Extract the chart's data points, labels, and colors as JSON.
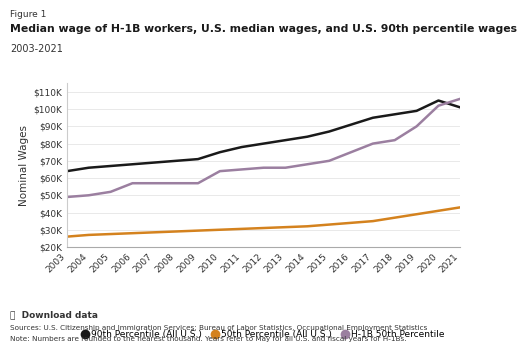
{
  "figure_label": "Figure 1",
  "title": "Median wage of H-1B workers, U.S. median wages, and U.S. 90th percentile wages",
  "subtitle": "2003-2021",
  "ylabel": "Nominal Wages",
  "years": [
    2003,
    2004,
    2005,
    2006,
    2007,
    2008,
    2009,
    2010,
    2011,
    2012,
    2013,
    2014,
    2015,
    2016,
    2017,
    2018,
    2019,
    2020,
    2021
  ],
  "series": [
    {
      "label": "90th Percentile (All U.S.)",
      "values": [
        64000,
        66000,
        67000,
        68000,
        69000,
        70000,
        71000,
        75000,
        78000,
        80000,
        82000,
        84000,
        87000,
        91000,
        95000,
        97000,
        99000,
        105000,
        101000
      ],
      "color": "#1a1a1a",
      "linewidth": 1.8
    },
    {
      "label": "50th Percentile (All U.S.)",
      "values": [
        26000,
        27000,
        27500,
        28000,
        28500,
        29000,
        29500,
        30000,
        30500,
        31000,
        31500,
        32000,
        33000,
        34000,
        35000,
        37000,
        39000,
        41000,
        43000
      ],
      "color": "#d4821e",
      "linewidth": 1.8
    },
    {
      "label": "H-1B 50th Percentile",
      "values": [
        49000,
        50000,
        52000,
        57000,
        57000,
        57000,
        57000,
        64000,
        65000,
        66000,
        66000,
        68000,
        70000,
        75000,
        80000,
        82000,
        90000,
        102000,
        106000
      ],
      "color": "#9b7fa0",
      "linewidth": 1.8
    }
  ],
  "ylim": [
    20000,
    115000
  ],
  "yticks": [
    20000,
    30000,
    40000,
    50000,
    60000,
    70000,
    80000,
    90000,
    100000,
    110000
  ],
  "background_color": "#ffffff",
  "source_text": "Sources: U.S. Citizenship and Immigration Services; Bureau of Labor Statistics, Occupational Employment Statistics",
  "note_text": "Note: Numbers are rounded to the nearest thousand. Years refer to May for all U.S. and fiscal years for H-1Bs.",
  "download_text": "⤓  Download data"
}
